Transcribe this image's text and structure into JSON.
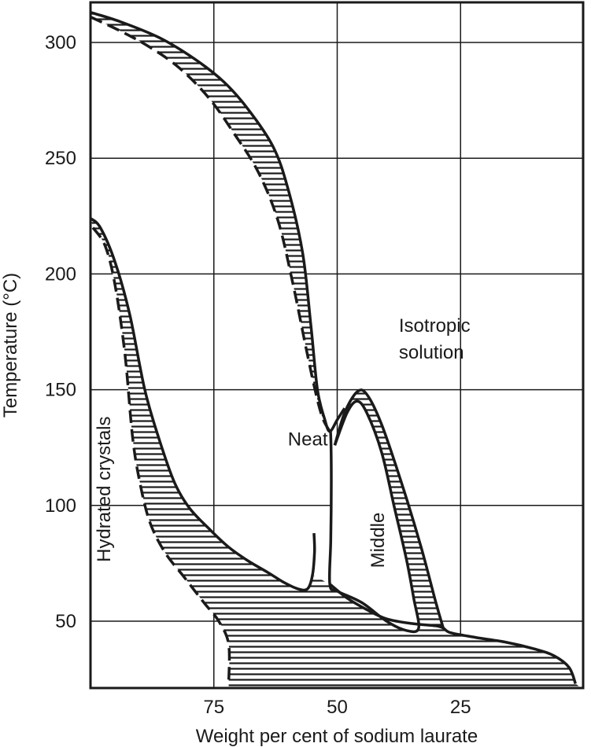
{
  "chart_data": {
    "type": "line",
    "xlabel": "Weight per cent of sodium laurate",
    "ylabel": "Temperature (°C)",
    "xlim": [
      100,
      0
    ],
    "ylim": [
      17,
      323
    ],
    "x_ticks": [
      {
        "value": 75,
        "label": "75"
      },
      {
        "value": 50,
        "label": "50"
      },
      {
        "value": 25,
        "label": "25"
      }
    ],
    "y_ticks": [
      {
        "value": 50,
        "label": "50"
      },
      {
        "value": 100,
        "label": "100"
      },
      {
        "value": 150,
        "label": "150"
      },
      {
        "value": 200,
        "label": "200"
      },
      {
        "value": 250,
        "label": "250"
      },
      {
        "value": 300,
        "label": "300"
      }
    ],
    "grid": true,
    "region_labels": [
      {
        "id": "isotropic",
        "lines": [
          "Isotropic",
          "solution"
        ],
        "x": 37.5,
        "y": 175
      },
      {
        "id": "neat",
        "lines": [
          "Neat"
        ],
        "x": 60,
        "y": 126
      },
      {
        "id": "middle",
        "lines": [
          "Middle"
        ],
        "x": 40.5,
        "y": 85,
        "rotate": -90
      },
      {
        "id": "hydrated",
        "lines": [
          "Hydrated crystals"
        ],
        "x": 96,
        "y": 107,
        "rotate": -90
      }
    ],
    "boundaries": [
      {
        "id": "neat-upper-solid",
        "style": "solid",
        "points": [
          [
            100,
            313
          ],
          [
            94,
            309
          ],
          [
            86,
            302
          ],
          [
            79,
            293
          ],
          [
            73,
            283
          ],
          [
            68,
            271
          ],
          [
            63,
            255
          ],
          [
            60,
            237
          ],
          [
            57,
            209
          ],
          [
            55.3,
            177
          ],
          [
            54,
            150
          ],
          [
            52.5,
            137
          ],
          [
            51.5,
            132
          ],
          [
            50,
            137
          ],
          [
            48.5,
            142
          ]
        ]
      },
      {
        "id": "neat-upper-dashed",
        "style": "dashed",
        "points": [
          [
            100,
            311
          ],
          [
            94,
            305
          ],
          [
            88,
            298
          ],
          [
            82,
            289
          ],
          [
            76,
            276
          ],
          [
            71,
            261
          ],
          [
            66,
            244
          ],
          [
            62,
            223
          ],
          [
            59,
            196
          ],
          [
            56.5,
            170
          ],
          [
            54.5,
            150
          ],
          [
            53,
            138
          ],
          [
            51.5,
            132
          ]
        ]
      },
      {
        "id": "hydrated-lower-solid",
        "style": "solid",
        "points": [
          [
            100,
            224
          ],
          [
            98,
            220
          ],
          [
            95,
            205
          ],
          [
            92,
            182
          ],
          [
            89,
            150
          ],
          [
            86,
            128
          ],
          [
            83,
            110
          ],
          [
            80,
            99
          ],
          [
            76,
            90
          ],
          [
            72,
            82
          ],
          [
            68,
            76
          ],
          [
            64,
            71
          ],
          [
            61,
            67
          ],
          [
            58,
            64
          ],
          [
            56,
            64
          ],
          [
            55,
            70
          ],
          [
            54.6,
            80
          ],
          [
            54.7,
            88
          ]
        ]
      },
      {
        "id": "hydrated-lower-dashed",
        "style": "dashed",
        "points": [
          [
            99.5,
            220
          ],
          [
            97,
            212
          ],
          [
            95,
            195
          ],
          [
            93,
            165
          ],
          [
            91.5,
            130
          ],
          [
            90,
            110
          ],
          [
            88,
            93
          ],
          [
            85,
            80
          ],
          [
            81,
            69
          ],
          [
            77,
            58
          ],
          [
            74,
            50
          ],
          [
            72,
            40
          ],
          [
            72,
            23
          ]
        ]
      },
      {
        "id": "middle-outer-solid",
        "style": "solid",
        "points": [
          [
            50.5,
            126
          ],
          [
            48.5,
            140
          ],
          [
            46,
            149
          ],
          [
            44,
            148
          ],
          [
            41,
            135
          ],
          [
            37,
            110
          ],
          [
            33,
            82
          ],
          [
            30,
            58
          ],
          [
            28.5,
            47
          ]
        ]
      },
      {
        "id": "middle-inner-solid",
        "style": "solid",
        "points": [
          [
            50.5,
            126
          ],
          [
            48,
            140
          ],
          [
            46,
            145
          ],
          [
            44,
            140
          ],
          [
            41,
            123
          ],
          [
            38.5,
            100
          ],
          [
            36,
            77
          ],
          [
            34.5,
            60
          ],
          [
            33.5,
            47
          ],
          [
            36,
            46
          ],
          [
            40,
            50
          ],
          [
            45,
            58
          ],
          [
            50,
            63
          ],
          [
            51.5,
            66
          ],
          [
            51.3,
            85
          ],
          [
            51.2,
            110
          ],
          [
            51.3,
            130
          ],
          [
            51.5,
            132
          ]
        ]
      },
      {
        "id": "bottom-solid",
        "style": "solid",
        "points": [
          [
            51.5,
            66
          ],
          [
            48,
            60
          ],
          [
            44,
            55
          ],
          [
            40,
            51
          ],
          [
            35,
            49
          ],
          [
            30,
            48
          ],
          [
            28.5,
            47
          ],
          [
            27,
            45
          ],
          [
            22,
            43
          ],
          [
            16,
            41
          ],
          [
            10,
            38
          ],
          [
            6,
            35
          ],
          [
            3,
            30
          ],
          [
            1.7,
            23
          ]
        ]
      }
    ]
  }
}
